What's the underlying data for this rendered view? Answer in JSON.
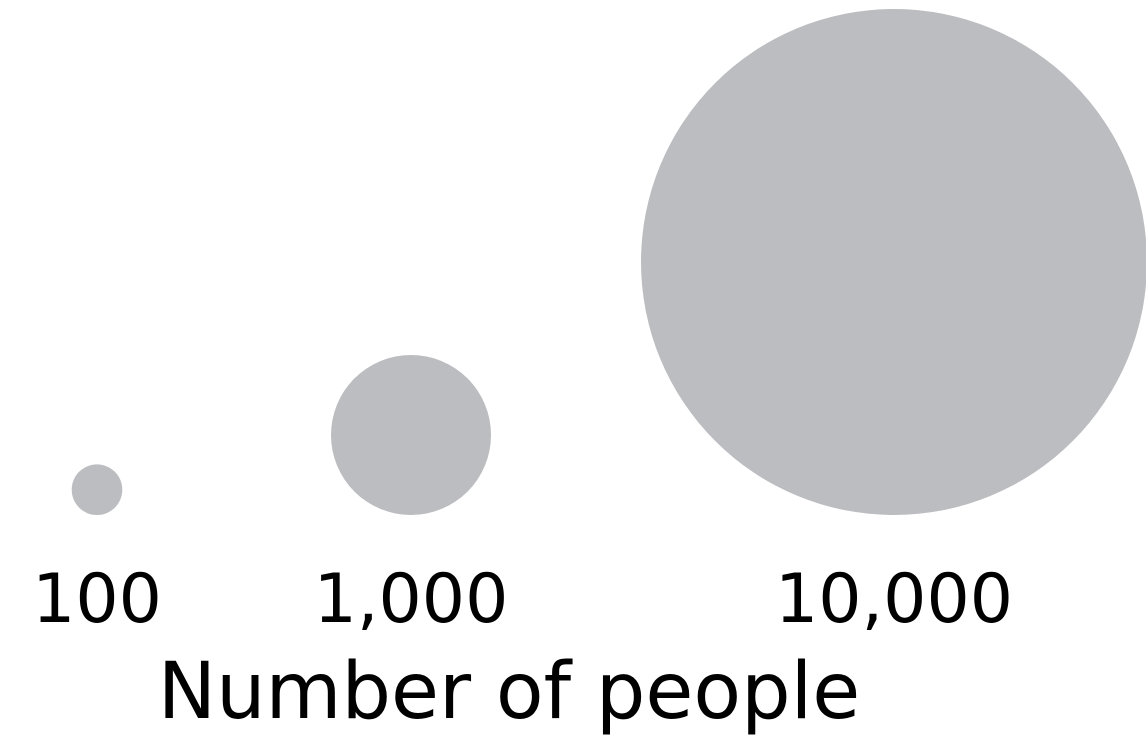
{
  "chart_data": {
    "type": "bubble",
    "categories": [
      "100",
      "1,000",
      "10,000"
    ],
    "values": [
      100,
      1000,
      10000
    ],
    "xlabel": "Number of people",
    "colors": {
      "bubble": "#bcbdc0",
      "text": "#000000",
      "background": "#ffffff"
    }
  }
}
